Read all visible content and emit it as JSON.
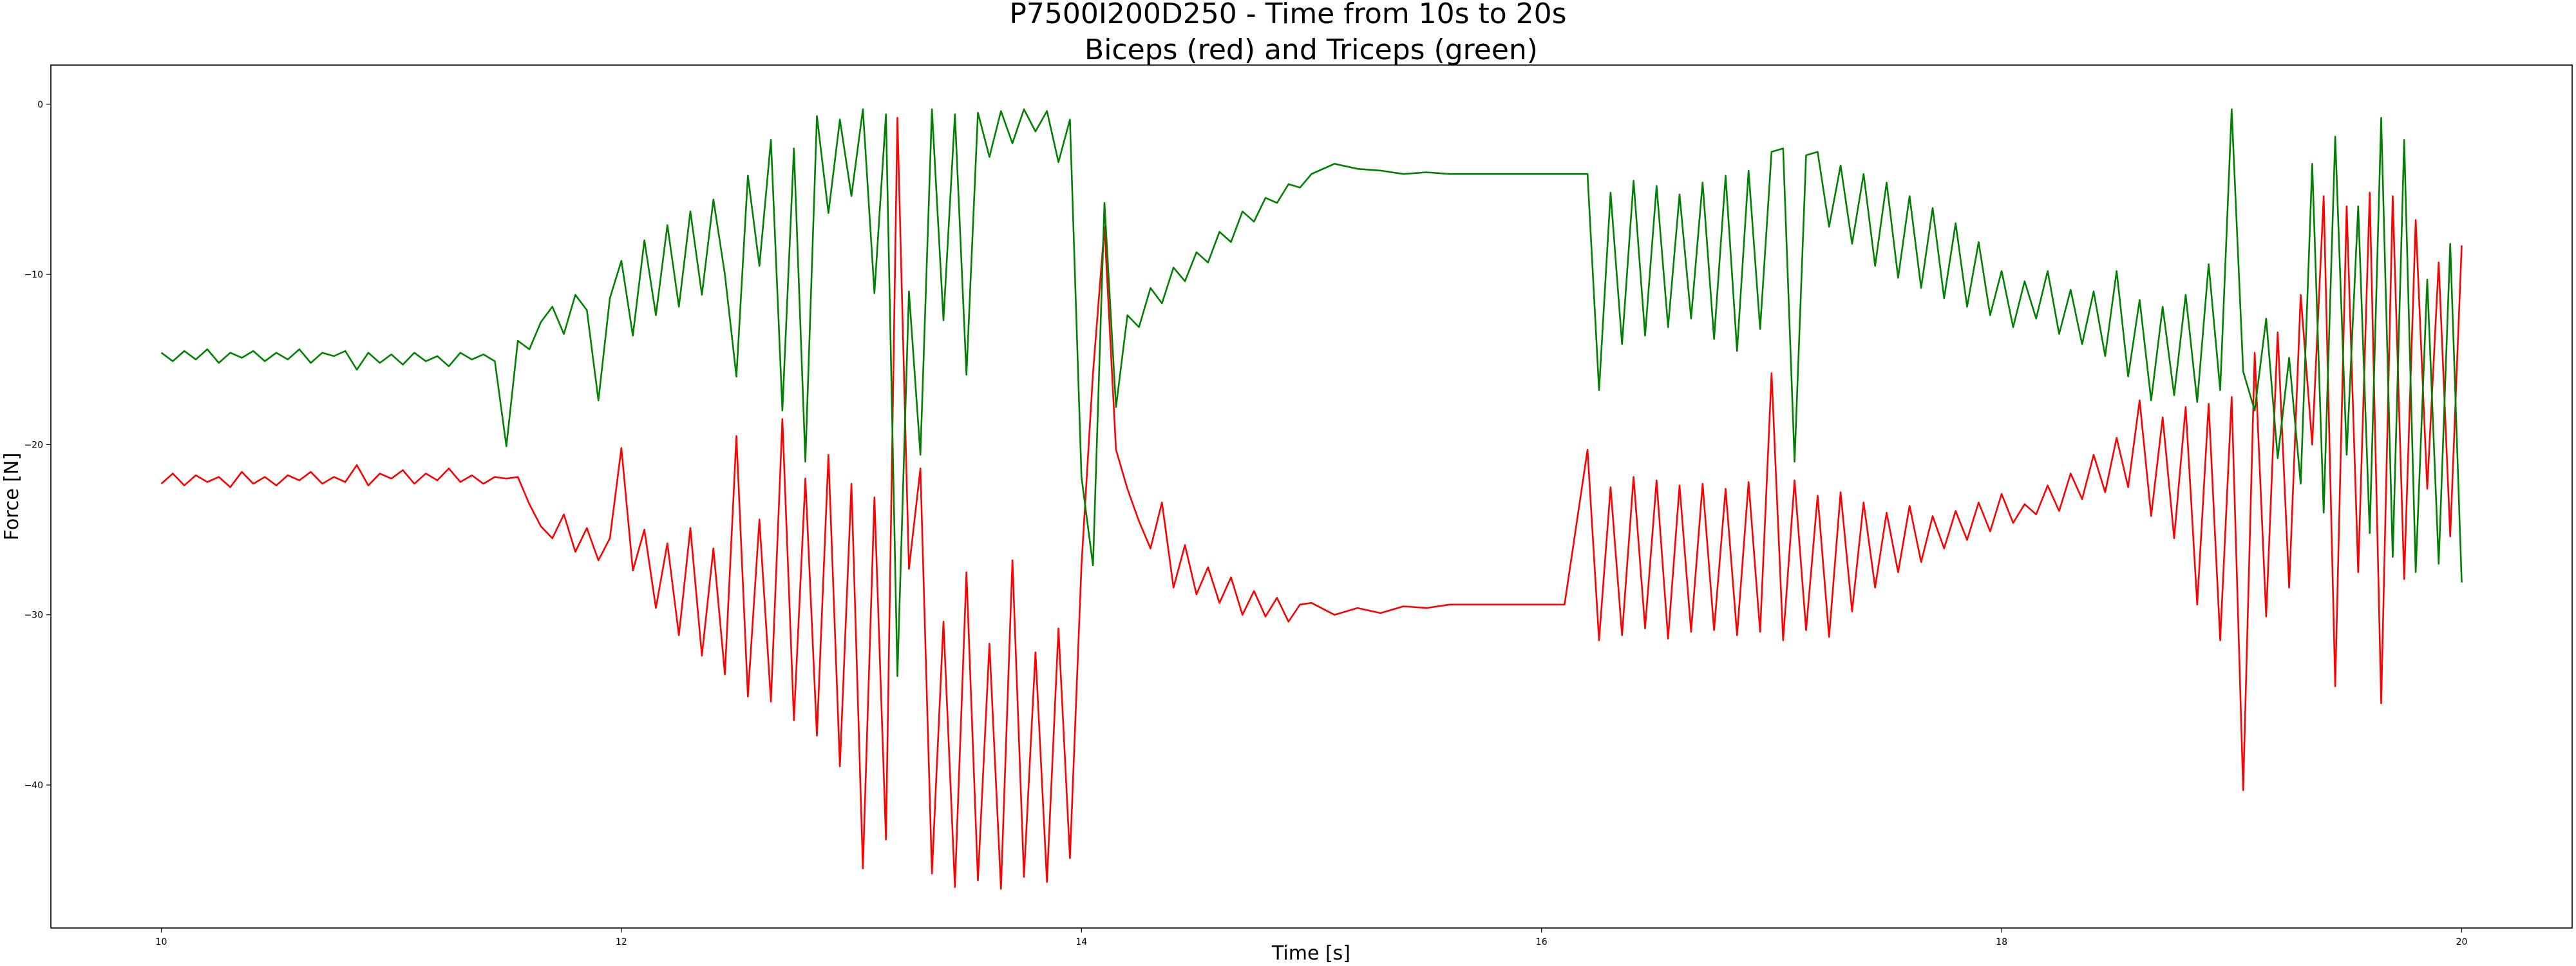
{
  "chart_data": {
    "type": "line",
    "title": "P7500I200D250 - Time from 10s to 20s",
    "subtitle": "Biceps (red) and Triceps (green)",
    "xlabel": "Time [s]",
    "ylabel": "Force [N]",
    "xlim": [
      9.52,
      20.48
    ],
    "ylim": [
      -48.4,
      2.3
    ],
    "xticks": [
      10,
      12,
      14,
      16,
      18,
      20
    ],
    "yticks": [
      0,
      -10,
      -20,
      -30,
      -40
    ],
    "grid": false,
    "legend": "none",
    "series": [
      {
        "color": "#ff0000",
        "x": [
          10.0,
          10.05,
          10.1,
          10.15,
          10.2,
          10.25,
          10.3,
          10.35,
          10.4,
          10.45,
          10.5,
          10.55,
          10.6,
          10.65,
          10.7,
          10.75,
          10.8,
          10.85,
          10.9,
          10.95,
          11.0,
          11.05,
          11.1,
          11.15,
          11.2,
          11.25,
          11.3,
          11.35,
          11.4,
          11.45,
          11.5,
          11.55,
          11.6,
          11.65,
          11.7,
          11.75,
          11.8,
          11.85,
          11.9,
          11.95,
          12.0,
          12.05,
          12.1,
          12.15,
          12.2,
          12.25,
          12.3,
          12.35,
          12.4,
          12.45,
          12.5,
          12.55,
          12.6,
          12.65,
          12.7,
          12.75,
          12.8,
          12.85,
          12.9,
          12.95,
          13.0,
          13.05,
          13.1,
          13.15,
          13.2,
          13.25,
          13.3,
          13.35,
          13.4,
          13.45,
          13.5,
          13.55,
          13.6,
          13.65,
          13.7,
          13.75,
          13.8,
          13.85,
          13.9,
          13.95,
          14.0,
          14.05,
          14.1,
          14.15,
          14.2,
          14.25,
          14.3,
          14.35,
          14.4,
          14.45,
          14.5,
          14.55,
          14.6,
          14.65,
          14.7,
          14.75,
          14.8,
          14.85,
          14.9,
          14.95,
          15.0,
          15.1,
          15.2,
          15.3,
          15.4,
          15.5,
          15.6,
          15.7,
          15.8,
          15.9,
          16.0,
          16.1,
          16.2,
          16.25,
          16.3,
          16.35,
          16.4,
          16.45,
          16.5,
          16.55,
          16.6,
          16.65,
          16.7,
          16.75,
          16.8,
          16.85,
          16.9,
          16.95,
          17.0,
          17.05,
          17.1,
          17.15,
          17.2,
          17.25,
          17.3,
          17.35,
          17.4,
          17.45,
          17.5,
          17.55,
          17.6,
          17.65,
          17.7,
          17.75,
          17.8,
          17.85,
          17.9,
          17.95,
          18.0,
          18.05,
          18.1,
          18.15,
          18.2,
          18.25,
          18.3,
          18.35,
          18.4,
          18.45,
          18.5,
          18.55,
          18.6,
          18.65,
          18.7,
          18.75,
          18.8,
          18.85,
          18.9,
          18.95,
          19.0,
          19.05,
          19.1,
          19.15,
          19.2,
          19.25,
          19.3,
          19.35,
          19.4,
          19.45,
          19.5,
          19.55,
          19.6,
          19.65,
          19.7,
          19.75,
          19.8,
          19.85,
          19.9,
          19.95,
          20.0
        ],
        "y": [
          -22.3,
          -21.7,
          -22.4,
          -21.8,
          -22.2,
          -21.9,
          -22.5,
          -21.6,
          -22.3,
          -21.9,
          -22.4,
          -21.8,
          -22.1,
          -21.6,
          -22.3,
          -21.9,
          -22.2,
          -21.2,
          -22.4,
          -21.7,
          -22.0,
          -21.5,
          -22.3,
          -21.7,
          -22.1,
          -21.4,
          -22.2,
          -21.8,
          -22.3,
          -21.9,
          -22.0,
          -21.9,
          -23.5,
          -24.8,
          -25.5,
          -24.1,
          -26.3,
          -24.9,
          -26.8,
          -25.5,
          -20.2,
          -27.4,
          -25.0,
          -29.6,
          -25.8,
          -31.2,
          -24.9,
          -32.4,
          -26.1,
          -33.5,
          -19.5,
          -34.8,
          -24.4,
          -35.1,
          -18.5,
          -36.2,
          -22.0,
          -37.1,
          -20.6,
          -38.9,
          -22.3,
          -44.9,
          -23.1,
          -43.2,
          -0.8,
          -27.3,
          -21.4,
          -45.2,
          -30.4,
          -46.0,
          -27.5,
          -45.6,
          -31.7,
          -46.1,
          -26.8,
          -45.4,
          -32.2,
          -45.7,
          -30.8,
          -44.3,
          -27.1,
          -15.8,
          -7.2,
          -20.3,
          -22.6,
          -24.5,
          -26.1,
          -23.4,
          -28.4,
          -25.9,
          -28.8,
          -27.2,
          -29.3,
          -27.8,
          -30.0,
          -28.6,
          -30.1,
          -29.0,
          -30.4,
          -29.4,
          -29.3,
          -30.0,
          -29.6,
          -29.9,
          -29.5,
          -29.6,
          -29.4,
          -29.4,
          -29.4,
          -29.4,
          -29.4,
          -29.4,
          -20.3,
          -31.5,
          -22.5,
          -31.2,
          -21.9,
          -30.8,
          -22.1,
          -31.4,
          -22.4,
          -31.0,
          -22.3,
          -30.9,
          -22.6,
          -31.2,
          -22.2,
          -31.0,
          -15.8,
          -31.5,
          -22.1,
          -30.9,
          -23.0,
          -31.3,
          -22.8,
          -29.8,
          -23.4,
          -28.4,
          -24.0,
          -27.5,
          -23.6,
          -26.9,
          -24.2,
          -26.1,
          -23.9,
          -25.6,
          -23.4,
          -25.1,
          -22.9,
          -24.6,
          -23.5,
          -24.1,
          -22.4,
          -23.9,
          -21.7,
          -23.2,
          -20.6,
          -22.8,
          -19.6,
          -22.5,
          -17.4,
          -24.2,
          -18.4,
          -25.5,
          -17.8,
          -29.4,
          -17.6,
          -31.5,
          -17.2,
          -40.3,
          -14.6,
          -30.1,
          -13.4,
          -28.4,
          -11.2,
          -20.0,
          -5.4,
          -34.2,
          -6.0,
          -27.5,
          -5.2,
          -35.2,
          -5.4,
          -27.9,
          -6.8,
          -22.6,
          -9.3,
          -25.4,
          -8.3
        ]
      },
      {
        "color": "#008000",
        "x": [
          10.0,
          10.05,
          10.1,
          10.15,
          10.2,
          10.25,
          10.3,
          10.35,
          10.4,
          10.45,
          10.5,
          10.55,
          10.6,
          10.65,
          10.7,
          10.75,
          10.8,
          10.85,
          10.9,
          10.95,
          11.0,
          11.05,
          11.1,
          11.15,
          11.2,
          11.25,
          11.3,
          11.35,
          11.4,
          11.45,
          11.5,
          11.55,
          11.6,
          11.65,
          11.7,
          11.75,
          11.8,
          11.85,
          11.9,
          11.95,
          12.0,
          12.05,
          12.1,
          12.15,
          12.2,
          12.25,
          12.3,
          12.35,
          12.4,
          12.45,
          12.5,
          12.55,
          12.6,
          12.65,
          12.7,
          12.75,
          12.8,
          12.85,
          12.9,
          12.95,
          13.0,
          13.05,
          13.1,
          13.15,
          13.2,
          13.25,
          13.3,
          13.35,
          13.4,
          13.45,
          13.5,
          13.55,
          13.6,
          13.65,
          13.7,
          13.75,
          13.8,
          13.85,
          13.9,
          13.95,
          14.0,
          14.05,
          14.1,
          14.15,
          14.2,
          14.25,
          14.3,
          14.35,
          14.4,
          14.45,
          14.5,
          14.55,
          14.6,
          14.65,
          14.7,
          14.75,
          14.8,
          14.85,
          14.9,
          14.95,
          15.0,
          15.1,
          15.2,
          15.3,
          15.4,
          15.5,
          15.6,
          15.7,
          15.8,
          15.9,
          16.0,
          16.1,
          16.2,
          16.25,
          16.3,
          16.35,
          16.4,
          16.45,
          16.5,
          16.55,
          16.6,
          16.65,
          16.7,
          16.75,
          16.8,
          16.85,
          16.9,
          16.95,
          17.0,
          17.05,
          17.1,
          17.15,
          17.2,
          17.25,
          17.3,
          17.35,
          17.4,
          17.45,
          17.5,
          17.55,
          17.6,
          17.65,
          17.7,
          17.75,
          17.8,
          17.85,
          17.9,
          17.95,
          18.0,
          18.05,
          18.1,
          18.15,
          18.2,
          18.25,
          18.3,
          18.35,
          18.4,
          18.45,
          18.5,
          18.55,
          18.6,
          18.65,
          18.7,
          18.75,
          18.8,
          18.85,
          18.9,
          18.95,
          19.0,
          19.05,
          19.1,
          19.15,
          19.2,
          19.25,
          19.3,
          19.35,
          19.4,
          19.45,
          19.5,
          19.55,
          19.6,
          19.65,
          19.7,
          19.75,
          19.8,
          19.85,
          19.9,
          19.95,
          20.0
        ],
        "y": [
          -14.6,
          -15.1,
          -14.5,
          -15.0,
          -14.4,
          -15.2,
          -14.6,
          -14.9,
          -14.5,
          -15.1,
          -14.6,
          -15.0,
          -14.4,
          -15.2,
          -14.6,
          -14.8,
          -14.5,
          -15.6,
          -14.6,
          -15.2,
          -14.7,
          -15.3,
          -14.6,
          -15.1,
          -14.8,
          -15.4,
          -14.6,
          -15.0,
          -14.7,
          -15.1,
          -20.1,
          -13.9,
          -14.4,
          -12.8,
          -11.9,
          -13.5,
          -11.2,
          -12.1,
          -17.4,
          -11.4,
          -9.2,
          -13.6,
          -8.0,
          -12.4,
          -7.1,
          -11.9,
          -6.3,
          -11.2,
          -5.6,
          -10.0,
          -16.0,
          -4.2,
          -9.5,
          -2.1,
          -18.0,
          -2.6,
          -21.0,
          -0.7,
          -6.4,
          -0.9,
          -5.4,
          -0.3,
          -11.1,
          -0.6,
          -33.6,
          -11.0,
          -20.6,
          -0.3,
          -12.7,
          -0.6,
          -15.9,
          -0.5,
          -3.1,
          -0.4,
          -2.3,
          -0.3,
          -1.6,
          -0.4,
          -3.4,
          -0.9,
          -21.9,
          -27.1,
          -5.8,
          -17.8,
          -12.4,
          -13.1,
          -10.8,
          -11.7,
          -9.6,
          -10.4,
          -8.7,
          -9.3,
          -7.5,
          -8.1,
          -6.3,
          -6.9,
          -5.5,
          -5.8,
          -4.7,
          -4.9,
          -4.1,
          -3.5,
          -3.8,
          -3.9,
          -4.1,
          -4.0,
          -4.1,
          -4.1,
          -4.1,
          -4.1,
          -4.1,
          -4.1,
          -4.1,
          -16.8,
          -5.2,
          -14.1,
          -4.5,
          -13.6,
          -4.8,
          -13.1,
          -5.3,
          -12.6,
          -4.6,
          -13.8,
          -4.2,
          -14.5,
          -3.9,
          -13.2,
          -2.8,
          -2.6,
          -21.0,
          -3.0,
          -2.8,
          -7.2,
          -3.6,
          -8.2,
          -4.1,
          -9.5,
          -4.6,
          -10.2,
          -5.4,
          -10.8,
          -6.1,
          -11.4,
          -7.0,
          -11.9,
          -8.1,
          -12.4,
          -9.8,
          -13.1,
          -10.4,
          -12.6,
          -9.8,
          -13.5,
          -10.9,
          -14.1,
          -11.0,
          -14.8,
          -9.8,
          -16.0,
          -11.5,
          -17.4,
          -11.9,
          -17.1,
          -11.2,
          -17.5,
          -9.4,
          -16.8,
          -0.3,
          -15.7,
          -18.0,
          -12.6,
          -20.8,
          -14.9,
          -22.3,
          -3.5,
          -24.0,
          -1.9,
          -20.6,
          -6.0,
          -25.2,
          -0.8,
          -26.6,
          -2.1,
          -27.5,
          -10.3,
          -27.0,
          -8.2,
          -28.1
        ]
      }
    ]
  }
}
